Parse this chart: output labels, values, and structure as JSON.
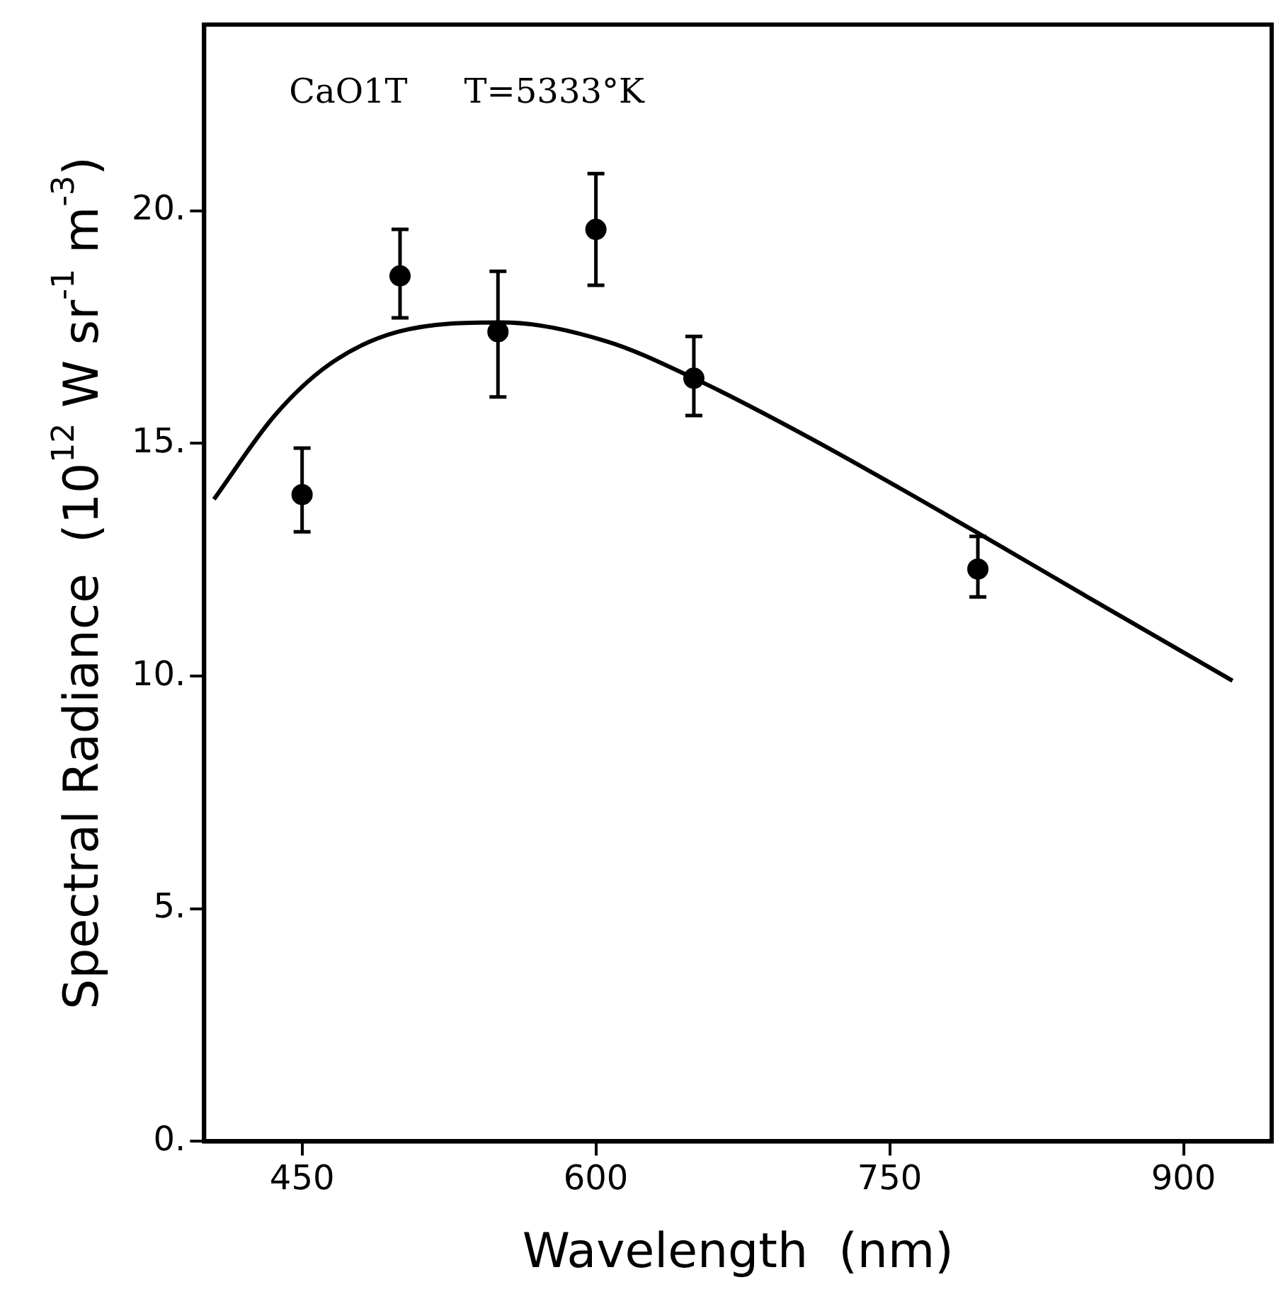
{
  "chart_data": {
    "type": "scatter",
    "xlabel": "Wavelength  (nm)",
    "ylabel": "Spectral Radiance  (10$^{12}$ W sr$^{-1}$ m$^{-3}$)",
    "annotations": [
      "CaO1T",
      "T=5333°K"
    ],
    "xlim": [
      400,
      945
    ],
    "xticks": [
      450,
      600,
      750,
      900
    ],
    "ylim": [
      0,
      24
    ],
    "yticks": [
      {
        "value": 0,
        "label": "0."
      },
      {
        "value": 5,
        "label": "5."
      },
      {
        "value": 10,
        "label": "10."
      },
      {
        "value": 15,
        "label": "15."
      },
      {
        "value": 20,
        "label": "20."
      }
    ],
    "grid": false,
    "legend": false,
    "marker": "circle",
    "series": [
      {
        "color": "#000000",
        "x": [
          450,
          500,
          550,
          600,
          650,
          795
        ],
        "values": [
          13.9,
          18.6,
          17.4,
          19.6,
          16.4,
          12.3
        ],
        "errors": [
          [
            13.1,
            14.9
          ],
          [
            17.7,
            19.6
          ],
          [
            16.0,
            18.7
          ],
          [
            18.4,
            20.8
          ],
          [
            15.6,
            17.3
          ],
          [
            11.7,
            13.0
          ]
        ]
      },
      {
        "type": "line",
        "color": "#000000",
        "marker": "none",
        "line_style": "solid",
        "x": [
          405,
          436,
          464,
          499,
          552,
          605,
          650,
          710,
          794,
          851,
          925
        ],
        "values": [
          13.8,
          15.6,
          16.7,
          17.4,
          17.6,
          17.2,
          16.4,
          15.1,
          13.1,
          11.7,
          9.9
        ]
      }
    ]
  }
}
